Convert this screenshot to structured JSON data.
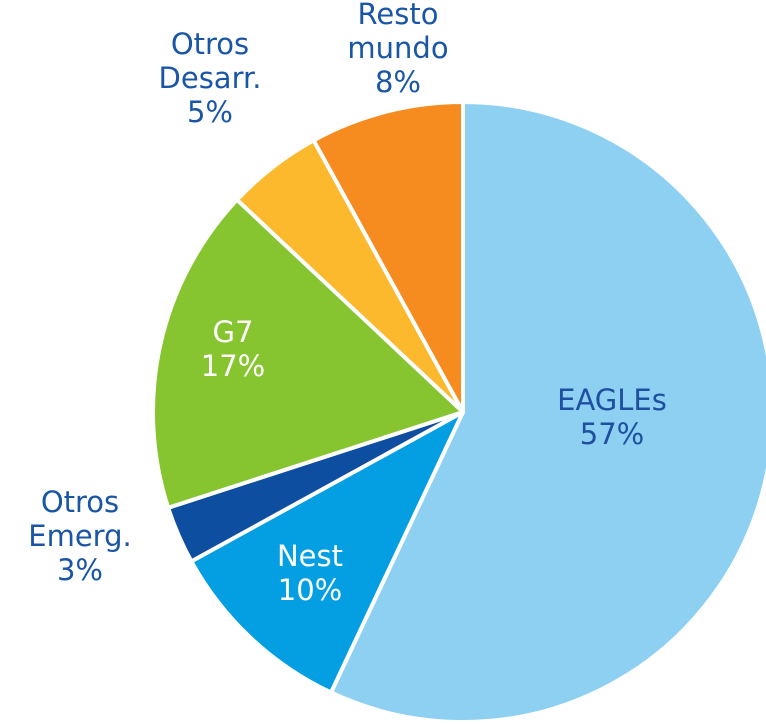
{
  "chart_data": {
    "type": "pie",
    "categories": [
      "EAGLEs",
      "Nest",
      "Otros Emerg.",
      "G7",
      "Otros Desarr.",
      "Resto mundo"
    ],
    "values": [
      57,
      10,
      3,
      17,
      5,
      8
    ],
    "value_labels": [
      "57%",
      "10%",
      "3%",
      "17%",
      "5%",
      "8%"
    ],
    "colors": [
      "#8dd0f2",
      "#049fe3",
      "#0d4ea0",
      "#86c52f",
      "#fdb92d",
      "#f68b1f"
    ]
  }
}
